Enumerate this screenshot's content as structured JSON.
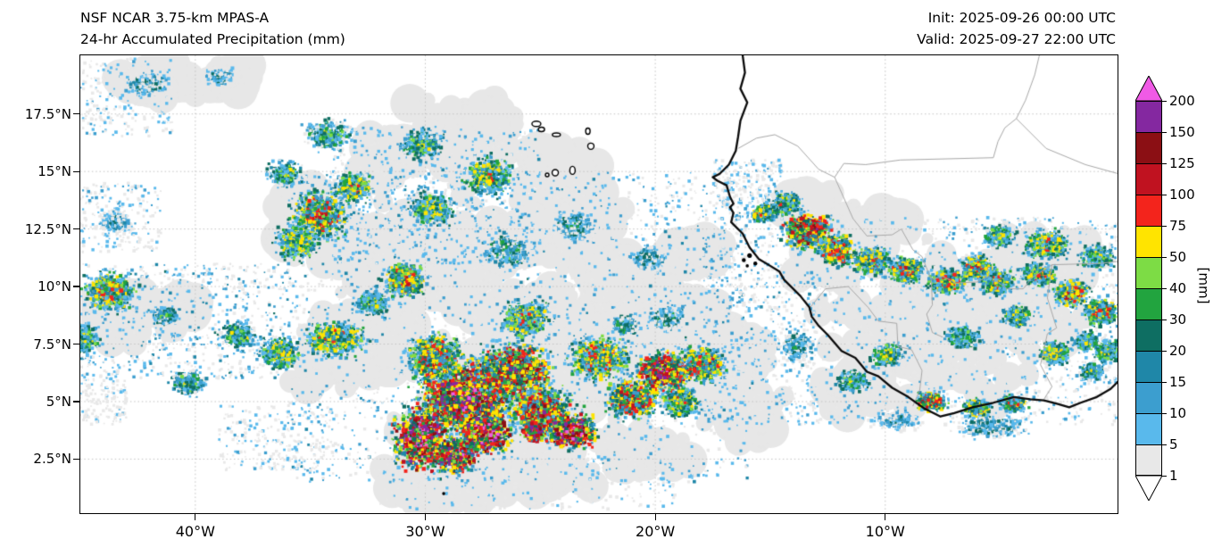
{
  "header": {
    "title_line1": "NSF NCAR 3.75-km MPAS-A",
    "title_line2": "24-hr Accumulated Precipitation (mm)",
    "init": "Init: 2025-09-26 00:00 UTC",
    "valid": "Valid: 2025-09-27 22:00 UTC"
  },
  "axes": {
    "x_ticks": [
      {
        "label": "40°W",
        "lon": -40
      },
      {
        "label": "30°W",
        "lon": -30
      },
      {
        "label": "20°W",
        "lon": -20
      },
      {
        "label": "10°W",
        "lon": -10
      }
    ],
    "y_ticks": [
      {
        "label": "17.5°N",
        "lat": 17.5
      },
      {
        "label": "15°N",
        "lat": 15
      },
      {
        "label": "12.5°N",
        "lat": 12.5
      },
      {
        "label": "10°N",
        "lat": 10
      },
      {
        "label": "7.5°N",
        "lat": 7.5
      },
      {
        "label": "5°N",
        "lat": 5
      },
      {
        "label": "2.5°N",
        "lat": 2.5
      }
    ]
  },
  "colorbar": {
    "unit": "[mm]",
    "boundaries": [
      1,
      5,
      10,
      15,
      20,
      30,
      40,
      50,
      75,
      100,
      125,
      150,
      200
    ],
    "band_colors": [
      "#e8e8e8",
      "#59b9ec",
      "#3c9ecf",
      "#1f87a8",
      "#0e6e62",
      "#22a43f",
      "#7ddc45",
      "#ffe400",
      "#f3241c",
      "#c01220",
      "#8b0f14",
      "#8428a0"
    ],
    "under_color": "#ffffff",
    "over_color": "#f05ae6"
  },
  "chart_data": {
    "type": "heatmap",
    "title": "NSF NCAR 3.75-km MPAS-A 24-hr Accumulated Precipitation (mm)",
    "units": "mm",
    "levels_mm": [
      1,
      5,
      10,
      15,
      20,
      30,
      40,
      50,
      75,
      100,
      125,
      150,
      200
    ],
    "extent_deg": {
      "lon_min": -45.0,
      "lon_max": 0.1,
      "lat_min": 0.15,
      "lat_max": 20.05
    }
  },
  "map": {
    "extent": {
      "lon_min": -45.0,
      "lon_max": 0.1,
      "lat_min": 0.15,
      "lat_max": 20.05
    },
    "grid": {
      "lons": [
        -40,
        -30,
        -20,
        -10
      ],
      "lats": [
        2.5,
        5,
        7.5,
        10,
        12.5,
        15,
        17.5
      ],
      "color": "#c4c4c4"
    },
    "geo": {
      "coastline_color": "#0a0a0a",
      "border_color": "#a8a8a8",
      "coastline": [
        [
          -16.2,
          20.05
        ],
        [
          -16.1,
          19.3
        ],
        [
          -16.3,
          18.6
        ],
        [
          -16.0,
          18.0
        ],
        [
          -16.3,
          17.2
        ],
        [
          -16.4,
          16.5
        ],
        [
          -16.5,
          15.9
        ],
        [
          -16.8,
          15.3
        ],
        [
          -17.2,
          14.9
        ],
        [
          -17.5,
          14.75
        ],
        [
          -17.3,
          14.6
        ],
        [
          -16.9,
          14.4
        ],
        [
          -16.75,
          13.9
        ],
        [
          -16.6,
          13.6
        ],
        [
          -16.75,
          13.45
        ],
        [
          -16.6,
          13.2
        ],
        [
          -16.7,
          12.8
        ],
        [
          -16.4,
          12.5
        ],
        [
          -16.2,
          12.3
        ],
        [
          -15.9,
          11.7
        ],
        [
          -15.5,
          11.2
        ],
        [
          -15.0,
          10.9
        ],
        [
          -14.6,
          10.65
        ],
        [
          -14.4,
          10.3
        ],
        [
          -14.1,
          10.0
        ],
        [
          -13.7,
          9.6
        ],
        [
          -13.3,
          9.1
        ],
        [
          -13.2,
          8.7
        ],
        [
          -12.9,
          8.3
        ],
        [
          -12.5,
          7.9
        ],
        [
          -11.9,
          7.2
        ],
        [
          -11.3,
          6.9
        ],
        [
          -10.8,
          6.3
        ],
        [
          -10.3,
          6.1
        ],
        [
          -9.7,
          5.6
        ],
        [
          -9.0,
          5.2
        ],
        [
          -8.3,
          4.7
        ],
        [
          -7.6,
          4.35
        ],
        [
          -7.0,
          4.5
        ],
        [
          -6.2,
          4.75
        ],
        [
          -5.3,
          4.95
        ],
        [
          -4.4,
          5.2
        ],
        [
          -3.7,
          5.1
        ],
        [
          -3.1,
          5.05
        ],
        [
          -2.5,
          4.9
        ],
        [
          -2.0,
          4.75
        ],
        [
          -1.5,
          4.95
        ],
        [
          -0.8,
          5.2
        ],
        [
          -0.2,
          5.55
        ],
        [
          0.15,
          5.9
        ]
      ],
      "islands": [
        [
          -25.17,
          17.07,
          10,
          6
        ],
        [
          -24.95,
          16.83,
          7,
          5
        ],
        [
          -24.3,
          16.6,
          9,
          4
        ],
        [
          -22.93,
          16.75,
          5,
          7
        ],
        [
          -22.8,
          16.1,
          7,
          7
        ],
        [
          -23.6,
          15.05,
          6,
          9
        ],
        [
          -24.35,
          14.95,
          7,
          7
        ],
        [
          -24.7,
          14.85,
          4,
          4
        ]
      ],
      "island_dots": [
        [
          -15.9,
          11.35,
          2.6
        ],
        [
          -16.15,
          11.15,
          2.2
        ],
        [
          -15.65,
          11.0,
          2.2
        ],
        [
          -16.0,
          10.9,
          1.8
        ],
        [
          -29.2,
          1.0,
          1.8
        ]
      ],
      "borders": [
        [
          [
            -16.4,
            16.0
          ],
          [
            -15.6,
            16.45
          ],
          [
            -14.8,
            16.6
          ],
          [
            -13.8,
            16.1
          ],
          [
            -12.9,
            15.1
          ],
          [
            -12.2,
            14.75
          ],
          [
            -11.8,
            15.35
          ],
          [
            -10.85,
            15.3
          ],
          [
            -9.35,
            15.5
          ],
          [
            -5.3,
            15.6
          ],
          [
            -5.1,
            16.3
          ],
          [
            -4.8,
            16.9
          ],
          [
            -4.3,
            17.3
          ],
          [
            -3.9,
            18.1
          ],
          [
            -3.5,
            19.2
          ],
          [
            -3.3,
            20.05
          ]
        ],
        [
          [
            -12.2,
            14.75
          ],
          [
            -11.4,
            12.95
          ],
          [
            -10.8,
            12.2
          ],
          [
            -9.7,
            12.25
          ],
          [
            -9.3,
            12.5
          ],
          [
            -8.8,
            11.6
          ],
          [
            -8.4,
            11.3
          ],
          [
            -8.0,
            10.3
          ],
          [
            -7.95,
            9.2
          ],
          [
            -8.2,
            8.8
          ],
          [
            -7.95,
            8.0
          ],
          [
            -7.5,
            7.8
          ]
        ],
        [
          [
            -13.3,
            9.05
          ],
          [
            -12.6,
            9.9
          ],
          [
            -11.6,
            10.0
          ],
          [
            -10.75,
            9.1
          ],
          [
            -10.3,
            8.5
          ],
          [
            -9.5,
            8.4
          ],
          [
            -9.45,
            7.4
          ],
          [
            -8.85,
            7.25
          ],
          [
            -8.4,
            6.35
          ],
          [
            -8.5,
            5.5
          ],
          [
            -8.8,
            4.8
          ]
        ],
        [
          [
            -3.1,
            5.1
          ],
          [
            -2.75,
            5.65
          ],
          [
            -3.25,
            6.6
          ],
          [
            -2.95,
            7.95
          ],
          [
            -2.55,
            8.2
          ],
          [
            -2.95,
            9.5
          ],
          [
            -2.75,
            10.95
          ]
        ],
        [
          [
            -5.5,
            10.45
          ],
          [
            -4.7,
            9.9
          ],
          [
            -4.0,
            9.9
          ],
          [
            -3.6,
            10.4
          ],
          [
            -2.75,
            10.95
          ],
          [
            -0.7,
            11.0
          ],
          [
            0.15,
            11.1
          ]
        ],
        [
          [
            -5.5,
            10.45
          ],
          [
            -6.0,
            10.2
          ],
          [
            -6.95,
            10.15
          ],
          [
            -7.5,
            10.45
          ],
          [
            -8.0,
            10.3
          ]
        ],
        [
          [
            -4.3,
            17.3
          ],
          [
            -3.0,
            16.0
          ],
          [
            -1.3,
            15.3
          ],
          [
            0.15,
            14.9
          ]
        ]
      ]
    }
  },
  "precip": {
    "gray_color": "#e7e7e7",
    "gray_blobs": [
      [
        -30,
        11,
        5.5,
        4,
        210
      ],
      [
        -25,
        6.5,
        6.5,
        4.5,
        240
      ],
      [
        -20,
        8,
        4.5,
        3.5,
        170
      ],
      [
        -28,
        3,
        5,
        2.2,
        150
      ],
      [
        -33,
        7.5,
        3.5,
        3,
        130
      ],
      [
        -24,
        12.5,
        3.5,
        2.5,
        120
      ],
      [
        -28,
        16.5,
        3.5,
        2.2,
        120
      ],
      [
        -35,
        13,
        2.8,
        2.2,
        100
      ],
      [
        -31.5,
        15.8,
        2,
        1.5,
        70
      ],
      [
        -7,
        8.5,
        7,
        4.5,
        240
      ],
      [
        -12,
        11.8,
        3,
        2,
        100
      ],
      [
        -3,
        10.8,
        3.5,
        2,
        90
      ],
      [
        -43.7,
        8.8,
        2.2,
        1.8,
        90
      ],
      [
        -41,
        9,
        1.5,
        1,
        50
      ],
      [
        -41.6,
        18.9,
        2,
        1,
        60
      ],
      [
        -38.6,
        19.1,
        1.1,
        0.7,
        40
      ],
      [
        -25,
        1.8,
        3.5,
        1.2,
        80
      ],
      [
        -20.5,
        2.8,
        2.5,
        1.3,
        70
      ],
      [
        -17,
        6.5,
        2.5,
        2.5,
        100
      ],
      [
        -24.2,
        15.3,
        2.2,
        1.3,
        80
      ],
      [
        -22,
        10.5,
        2,
        1.5,
        70
      ],
      [
        -18.5,
        11.5,
        1.6,
        1.2,
        60
      ],
      [
        -16,
        4.5,
        2.2,
        1.6,
        80
      ],
      [
        -11.5,
        5.5,
        2,
        1.2,
        60
      ],
      [
        -13.5,
        13.8,
        1.5,
        1,
        50
      ],
      [
        -10,
        12.8,
        1.5,
        1,
        50
      ],
      [
        -29,
        1.2,
        3,
        1,
        60
      ]
    ],
    "speckle_fields": [
      [
        -45,
        -36,
        6,
        11,
        800,
        22
      ],
      [
        -45,
        -41,
        16.5,
        19.9,
        260,
        14
      ],
      [
        -36,
        -16,
        1.5,
        15,
        2600,
        20
      ],
      [
        -34,
        -25,
        11,
        17,
        900,
        18
      ],
      [
        -18,
        -13,
        4,
        13.5,
        800,
        18
      ],
      [
        -13.5,
        0.1,
        4,
        13,
        1500,
        16
      ],
      [
        -32,
        -19,
        0.3,
        2.6,
        380,
        12
      ],
      [
        -45,
        -41.5,
        11.5,
        14.5,
        220,
        14
      ],
      [
        -39,
        -34,
        2,
        4.8,
        260,
        12
      ],
      [
        -17.5,
        -14.5,
        13.5,
        15.5,
        250,
        14
      ],
      [
        -45,
        -43,
        4,
        6,
        150,
        10
      ]
    ],
    "clusters": [
      [
        -28.2,
        5.2,
        2.4,
        1.9,
        3200,
        190
      ],
      [
        -26.2,
        6.3,
        1.9,
        1.4,
        1700,
        150
      ],
      [
        -29.6,
        6.9,
        1.4,
        1.2,
        900,
        100
      ],
      [
        -30.2,
        3.4,
        1.4,
        1.6,
        1100,
        230
      ],
      [
        -28.7,
        2.7,
        1.2,
        0.9,
        700,
        210
      ],
      [
        -27.4,
        3.6,
        1.3,
        1.0,
        800,
        230
      ],
      [
        -24.9,
        4.6,
        1.6,
        1.2,
        1000,
        130
      ],
      [
        -23.6,
        3.7,
        1.3,
        0.9,
        800,
        220
      ],
      [
        -25.3,
        3.7,
        0.6,
        0.5,
        300,
        210
      ],
      [
        -25.6,
        8.6,
        1.3,
        1.0,
        600,
        70
      ],
      [
        -22.4,
        6.9,
        1.6,
        1.1,
        800,
        90
      ],
      [
        -21.0,
        5.1,
        1.4,
        1.0,
        800,
        110
      ],
      [
        -19.6,
        6.3,
        1.4,
        1.0,
        800,
        170
      ],
      [
        -17.9,
        6.6,
        1.2,
        0.9,
        600,
        100
      ],
      [
        -18.9,
        5.0,
        1.0,
        0.8,
        450,
        80
      ],
      [
        -30.9,
        10.3,
        1.1,
        0.9,
        650,
        100
      ],
      [
        -33.9,
        7.7,
        1.6,
        0.9,
        650,
        80
      ],
      [
        -36.3,
        7.1,
        1.1,
        0.8,
        450,
        70
      ],
      [
        -38.1,
        7.9,
        0.9,
        0.7,
        350,
        50
      ],
      [
        -41.3,
        8.7,
        0.7,
        0.5,
        220,
        40
      ],
      [
        -32.3,
        9.3,
        0.9,
        0.7,
        350,
        50
      ],
      [
        -34.6,
        13.1,
        1.4,
        1.2,
        850,
        100
      ],
      [
        -35.6,
        11.9,
        1.1,
        0.9,
        500,
        70
      ],
      [
        -33.1,
        14.3,
        1.0,
        0.8,
        450,
        70
      ],
      [
        -36.1,
        14.9,
        0.9,
        0.7,
        300,
        50
      ],
      [
        -34.2,
        16.6,
        1.2,
        0.8,
        350,
        45
      ],
      [
        -29.7,
        13.4,
        1.2,
        0.9,
        450,
        60
      ],
      [
        -43.7,
        9.8,
        1.3,
        1.0,
        700,
        90
      ],
      [
        -44.9,
        7.7,
        0.8,
        0.8,
        350,
        60
      ],
      [
        -43.5,
        12.8,
        0.9,
        0.6,
        200,
        20
      ],
      [
        -27.3,
        14.8,
        1.3,
        1.0,
        500,
        70
      ],
      [
        -30.1,
        16.2,
        1.1,
        0.8,
        400,
        50
      ],
      [
        -23.5,
        12.6,
        1.1,
        0.8,
        400,
        30
      ],
      [
        -26.5,
        11.5,
        1.2,
        0.9,
        400,
        40
      ],
      [
        -20.3,
        11.2,
        1.0,
        0.7,
        300,
        25
      ],
      [
        -21.3,
        8.3,
        0.8,
        0.6,
        250,
        35
      ],
      [
        -19.5,
        8.6,
        1.0,
        0.8,
        300,
        30
      ],
      [
        -40.3,
        5.8,
        0.9,
        0.7,
        300,
        45
      ],
      [
        -13.4,
        12.4,
        1.3,
        0.9,
        800,
        150
      ],
      [
        -12.1,
        11.6,
        1.1,
        0.8,
        550,
        100
      ],
      [
        -14.3,
        13.6,
        0.8,
        0.6,
        350,
        70
      ],
      [
        -15.3,
        13.2,
        0.7,
        0.5,
        300,
        80
      ],
      [
        -10.6,
        11.1,
        1.0,
        0.7,
        450,
        80
      ],
      [
        -9.1,
        10.7,
        1.0,
        0.7,
        450,
        90
      ],
      [
        -7.3,
        10.2,
        1.0,
        0.7,
        450,
        90
      ],
      [
        -6.0,
        10.8,
        0.9,
        0.7,
        400,
        90
      ],
      [
        -5.1,
        10.2,
        0.9,
        0.7,
        400,
        80
      ],
      [
        -3.3,
        10.5,
        0.9,
        0.6,
        400,
        80
      ],
      [
        -1.9,
        9.7,
        0.9,
        0.7,
        400,
        100
      ],
      [
        -0.6,
        8.9,
        0.9,
        0.7,
        400,
        80
      ],
      [
        -3.0,
        11.8,
        1.2,
        0.8,
        450,
        70
      ],
      [
        -0.8,
        11.3,
        0.9,
        0.7,
        350,
        60
      ],
      [
        -5.0,
        12.2,
        0.9,
        0.6,
        300,
        50
      ],
      [
        -4.3,
        8.7,
        0.8,
        0.6,
        350,
        60
      ],
      [
        -6.6,
        7.8,
        0.9,
        0.6,
        350,
        50
      ],
      [
        -2.6,
        7.1,
        0.8,
        0.6,
        350,
        70
      ],
      [
        -1.2,
        7.6,
        0.7,
        0.5,
        300,
        60
      ],
      [
        -0.3,
        7.2,
        0.8,
        0.6,
        300,
        60
      ],
      [
        -1.0,
        6.3,
        0.7,
        0.5,
        250,
        50
      ],
      [
        -9.9,
        7.0,
        0.8,
        0.6,
        350,
        60
      ],
      [
        -11.4,
        5.9,
        0.9,
        0.6,
        350,
        50
      ],
      [
        -8.0,
        5.0,
        0.8,
        0.5,
        350,
        110
      ],
      [
        -6.0,
        4.7,
        0.7,
        0.5,
        300,
        90
      ],
      [
        -4.4,
        4.9,
        0.7,
        0.5,
        280,
        70
      ],
      [
        -13.9,
        7.4,
        0.9,
        0.8,
        300,
        30
      ],
      [
        -5.5,
        3.9,
        2.0,
        0.6,
        350,
        25
      ],
      [
        -9.5,
        4.2,
        1.2,
        0.5,
        250,
        20
      ],
      [
        -42.1,
        18.8,
        1.1,
        0.6,
        300,
        25
      ],
      [
        -38.9,
        19.1,
        0.8,
        0.5,
        220,
        22
      ]
    ]
  }
}
